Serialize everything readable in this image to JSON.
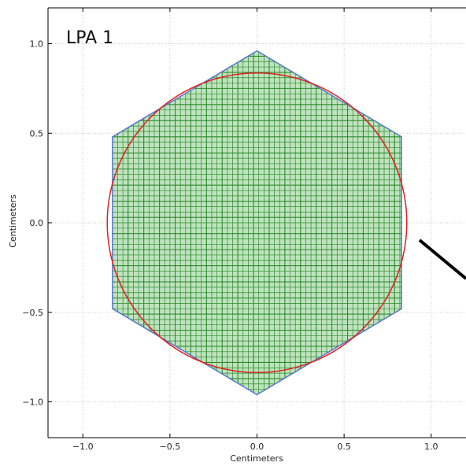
{
  "chart_data": {
    "type": "scatter",
    "panel_label": "LPA 1",
    "xlabel": "Centimeters",
    "ylabel": "Centimeters",
    "xlim": [
      -1.2,
      1.2
    ],
    "ylim": [
      -1.2,
      1.2
    ],
    "x_ticks": [
      -1.0,
      -0.5,
      0.0,
      0.5,
      1.0
    ],
    "y_ticks": [
      -1.0,
      -0.5,
      0.0,
      0.5,
      1.0
    ],
    "x_tick_labels": [
      "−1.0",
      "−0.5",
      "0.0",
      "0.5",
      "1.0"
    ],
    "y_tick_labels": [
      "−1.0",
      "−0.5",
      "0.0",
      "0.5",
      "1.0"
    ],
    "grid": true,
    "hexagon": {
      "vertices": [
        [
          0.0,
          0.96
        ],
        [
          0.83,
          0.48
        ],
        [
          0.83,
          -0.48
        ],
        [
          0.0,
          -0.96
        ],
        [
          -0.83,
          -0.48
        ],
        [
          -0.83,
          0.48
        ]
      ],
      "edge_color": "#5577cc"
    },
    "circle": {
      "center": [
        0.0,
        0.0
      ],
      "radius": 0.86,
      "color": "#e02020"
    },
    "mesh_color": "#2e8b2e",
    "mesh_fill": "#bfe3bf",
    "mesh_spacing": 0.03
  },
  "colors": {
    "background": "#ffffff",
    "axis": "#000000",
    "grid": "#bbbbbb"
  }
}
